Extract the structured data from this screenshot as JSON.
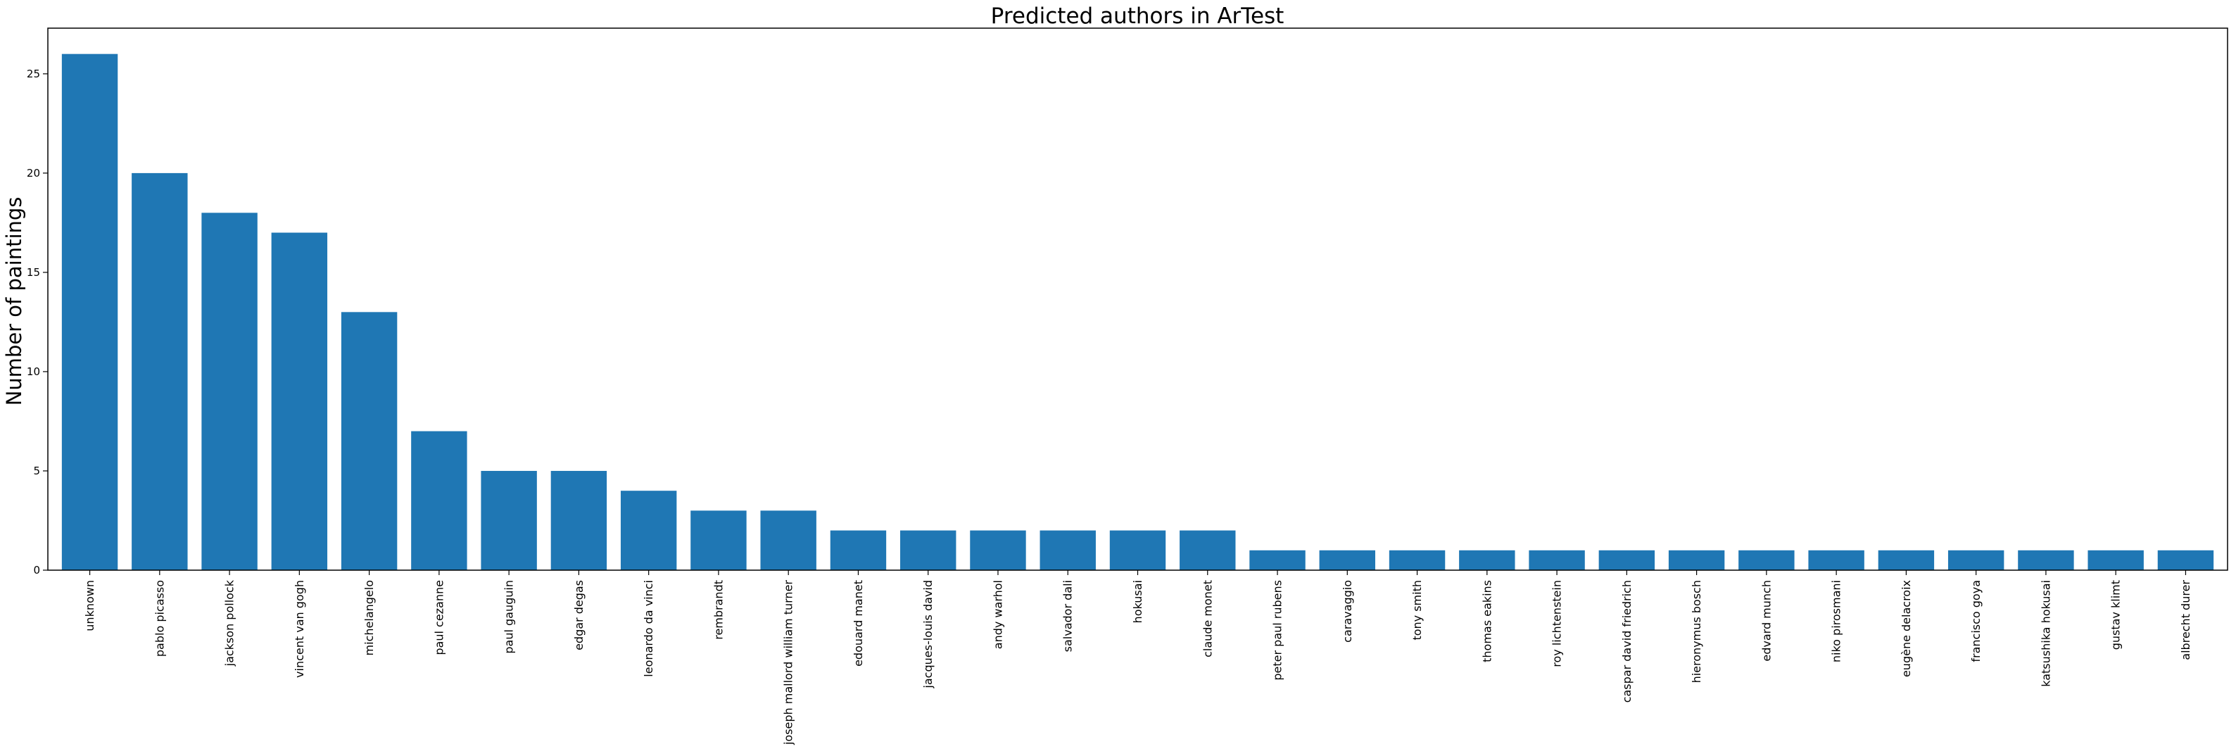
{
  "chart_data": {
    "type": "bar",
    "title": "Predicted authors in ArTest",
    "xlabel": "",
    "ylabel": "Number of paintings",
    "ylim": [
      0,
      27.3
    ],
    "yticks": [
      0,
      5,
      10,
      15,
      20,
      25
    ],
    "grid": false,
    "bar_color": "#1f77b4",
    "categories": [
      "unknown",
      "pablo picasso",
      "jackson pollock",
      "vincent van gogh",
      "michelangelo",
      "paul cezanne",
      "paul gauguin",
      "edgar degas",
      "leonardo da vinci",
      "rembrandt",
      "joseph mallord william turner",
      "edouard manet",
      "jacques-louis david",
      "andy warhol",
      "salvador dali",
      "hokusai",
      "claude monet",
      "peter paul rubens",
      "caravaggio",
      "tony smith",
      "thomas eakins",
      "roy lichtenstein",
      "caspar david friedrich",
      "hieronymus bosch",
      "edvard munch",
      "niko pirosmani",
      "eugène delacroix",
      "francisco goya",
      "katsushika hokusai",
      "gustav klimt",
      "albrecht durer"
    ],
    "values": [
      26,
      20,
      18,
      17,
      13,
      7,
      5,
      5,
      4,
      3,
      3,
      2,
      2,
      2,
      2,
      2,
      2,
      1,
      1,
      1,
      1,
      1,
      1,
      1,
      1,
      1,
      1,
      1,
      1,
      1,
      1
    ]
  }
}
